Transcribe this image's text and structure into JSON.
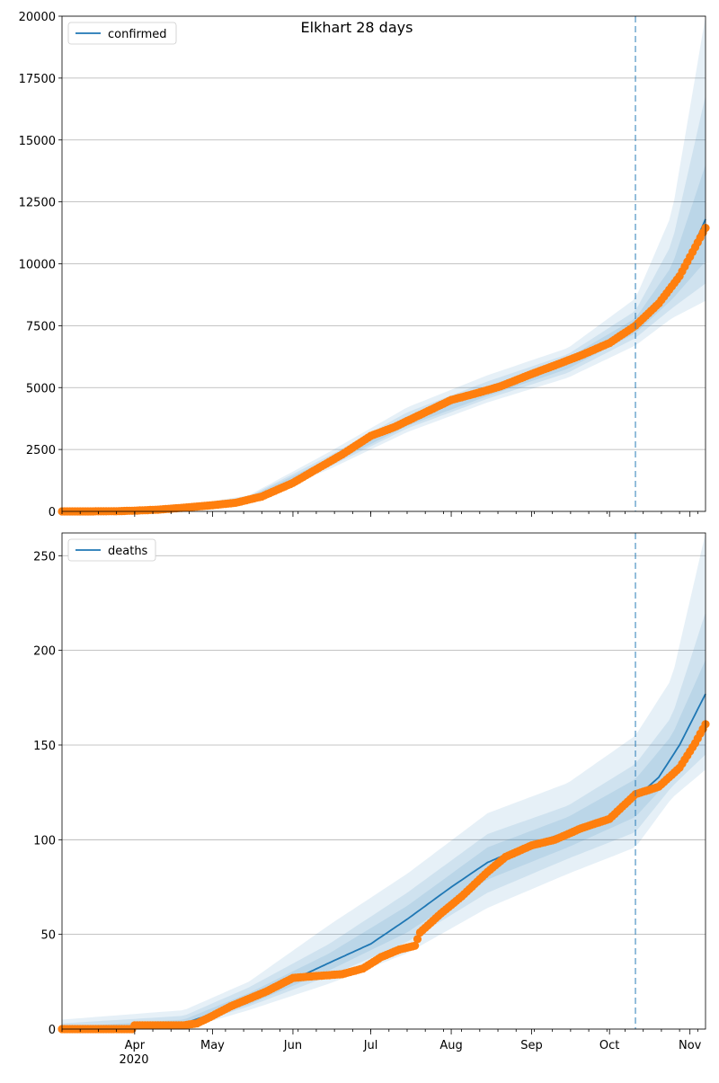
{
  "title": "Elkhart 28 days",
  "colors": {
    "model": "#1f77b4",
    "observed": "#ff7f0e",
    "band": "#1f77b4",
    "grid": "#b0b0b0"
  },
  "x_axis": {
    "months": [
      {
        "label": "Apr",
        "date": "2020-04-01"
      },
      {
        "label": "May",
        "date": "2020-05-01"
      },
      {
        "label": "Jun",
        "date": "2020-06-01"
      },
      {
        "label": "Jul",
        "date": "2020-07-01"
      },
      {
        "label": "Aug",
        "date": "2020-08-01"
      },
      {
        "label": "Sep",
        "date": "2020-09-01"
      },
      {
        "label": "Oct",
        "date": "2020-10-01"
      },
      {
        "label": "Nov",
        "date": "2020-11-01"
      }
    ],
    "year_label": "2020",
    "range": [
      "2020-03-04",
      "2020-11-07"
    ],
    "forecast_start": "2020-10-11"
  },
  "chart_data": [
    {
      "type": "line",
      "panel": "top",
      "legend": "confirmed",
      "legend_position": "upper-left",
      "grid": "y",
      "ylim": [
        0,
        20000
      ],
      "yticks": [
        "0",
        "2500",
        "5000",
        "7500",
        "10000",
        "12500",
        "15000",
        "17500",
        "20000"
      ],
      "model_series": {
        "name": "confirmed",
        "points": [
          [
            "2020-03-04",
            0
          ],
          [
            "2020-03-20",
            5
          ],
          [
            "2020-04-01",
            30
          ],
          [
            "2020-04-15",
            100
          ],
          [
            "2020-05-01",
            250
          ],
          [
            "2020-05-15",
            520
          ],
          [
            "2020-06-01",
            1200
          ],
          [
            "2020-06-15",
            2000
          ],
          [
            "2020-07-01",
            3050
          ],
          [
            "2020-07-15",
            3650
          ],
          [
            "2020-08-01",
            4400
          ],
          [
            "2020-08-15",
            4850
          ],
          [
            "2020-09-01",
            5550
          ],
          [
            "2020-09-15",
            6000
          ],
          [
            "2020-10-01",
            6700
          ],
          [
            "2020-10-11",
            7450
          ],
          [
            "2020-10-20",
            8300
          ],
          [
            "2020-10-28",
            9400
          ],
          [
            "2020-11-07",
            11800
          ]
        ]
      },
      "bands": [
        {
          "lower": [
            [
              "2020-03-04",
              0
            ],
            [
              "2020-04-15",
              70
            ],
            [
              "2020-05-15",
              400
            ],
            [
              "2020-06-15",
              1700
            ],
            [
              "2020-07-15",
              3200
            ],
            [
              "2020-08-15",
              4400
            ],
            [
              "2020-09-15",
              5400
            ],
            [
              "2020-10-11",
              6700
            ],
            [
              "2020-10-25",
              7800
            ],
            [
              "2020-11-07",
              8500
            ]
          ],
          "upper": [
            [
              "2020-03-04",
              0
            ],
            [
              "2020-04-15",
              140
            ],
            [
              "2020-05-15",
              650
            ],
            [
              "2020-06-15",
              2400
            ],
            [
              "2020-07-15",
              4200
            ],
            [
              "2020-08-15",
              5500
            ],
            [
              "2020-09-15",
              6600
            ],
            [
              "2020-10-11",
              8600
            ],
            [
              "2020-10-25",
              12000
            ],
            [
              "2020-11-07",
              20000
            ]
          ]
        },
        {
          "lower": [
            [
              "2020-03-04",
              0
            ],
            [
              "2020-04-15",
              80
            ],
            [
              "2020-05-15",
              440
            ],
            [
              "2020-06-15",
              1800
            ],
            [
              "2020-07-15",
              3350
            ],
            [
              "2020-08-15",
              4550
            ],
            [
              "2020-09-15",
              5600
            ],
            [
              "2020-10-11",
              7000
            ],
            [
              "2020-10-25",
              8200
            ],
            [
              "2020-11-07",
              9200
            ]
          ],
          "upper": [
            [
              "2020-03-04",
              0
            ],
            [
              "2020-04-15",
              125
            ],
            [
              "2020-05-15",
              610
            ],
            [
              "2020-06-15",
              2250
            ],
            [
              "2020-07-15",
              4000
            ],
            [
              "2020-08-15",
              5250
            ],
            [
              "2020-09-15",
              6350
            ],
            [
              "2020-10-11",
              8100
            ],
            [
              "2020-10-25",
              10800
            ],
            [
              "2020-11-07",
              16800
            ]
          ]
        },
        {
          "lower": [
            [
              "2020-03-04",
              0
            ],
            [
              "2020-04-15",
              88
            ],
            [
              "2020-05-15",
              470
            ],
            [
              "2020-06-15",
              1880
            ],
            [
              "2020-07-15",
              3450
            ],
            [
              "2020-08-15",
              4660
            ],
            [
              "2020-09-15",
              5760
            ],
            [
              "2020-10-11",
              7200
            ],
            [
              "2020-10-25",
              8550
            ],
            [
              "2020-11-07",
              10100
            ]
          ],
          "upper": [
            [
              "2020-03-04",
              0
            ],
            [
              "2020-04-15",
              115
            ],
            [
              "2020-05-15",
              575
            ],
            [
              "2020-06-15",
              2130
            ],
            [
              "2020-07-15",
              3850
            ],
            [
              "2020-08-15",
              5060
            ],
            [
              "2020-09-15",
              6200
            ],
            [
              "2020-10-11",
              7800
            ],
            [
              "2020-10-25",
              9900
            ],
            [
              "2020-11-07",
              14000
            ]
          ]
        }
      ],
      "observed": [
        [
          "2020-03-04",
          0
        ],
        [
          "2020-03-15",
          1
        ],
        [
          "2020-03-25",
          8
        ],
        [
          "2020-04-01",
          30
        ],
        [
          "2020-04-10",
          70
        ],
        [
          "2020-04-20",
          150
        ],
        [
          "2020-05-01",
          250
        ],
        [
          "2020-05-10",
          350
        ],
        [
          "2020-05-20",
          600
        ],
        [
          "2020-06-01",
          1150
        ],
        [
          "2020-06-10",
          1700
        ],
        [
          "2020-06-20",
          2300
        ],
        [
          "2020-07-01",
          3050
        ],
        [
          "2020-07-10",
          3400
        ],
        [
          "2020-07-20",
          3900
        ],
        [
          "2020-08-01",
          4500
        ],
        [
          "2020-08-10",
          4750
        ],
        [
          "2020-08-20",
          5050
        ],
        [
          "2020-09-01",
          5550
        ],
        [
          "2020-09-10",
          5900
        ],
        [
          "2020-09-20",
          6300
        ],
        [
          "2020-10-01",
          6800
        ],
        [
          "2020-10-11",
          7500
        ],
        [
          "2020-10-20",
          8400
        ],
        [
          "2020-10-28",
          9500
        ],
        [
          "2020-11-07",
          11450
        ]
      ]
    },
    {
      "type": "line",
      "panel": "bottom",
      "legend": "deaths",
      "legend_position": "upper-left",
      "grid": "y",
      "ylim": [
        0,
        262
      ],
      "yticks": [
        "0",
        "50",
        "100",
        "150",
        "200",
        "250"
      ],
      "model_series": {
        "name": "deaths",
        "points": [
          [
            "2020-03-04",
            0
          ],
          [
            "2020-04-01",
            1
          ],
          [
            "2020-04-20",
            3
          ],
          [
            "2020-05-01",
            8
          ],
          [
            "2020-05-15",
            16
          ],
          [
            "2020-06-01",
            26
          ],
          [
            "2020-06-15",
            35
          ],
          [
            "2020-07-01",
            45
          ],
          [
            "2020-07-15",
            58
          ],
          [
            "2020-08-01",
            75
          ],
          [
            "2020-08-15",
            88
          ],
          [
            "2020-09-01",
            98
          ],
          [
            "2020-09-15",
            104
          ],
          [
            "2020-10-01",
            112
          ],
          [
            "2020-10-11",
            122
          ],
          [
            "2020-10-20",
            133
          ],
          [
            "2020-10-28",
            150
          ],
          [
            "2020-11-07",
            177
          ]
        ]
      },
      "bands": [
        {
          "lower": [
            [
              "2020-03-04",
              0
            ],
            [
              "2020-04-20",
              0
            ],
            [
              "2020-05-15",
              10
            ],
            [
              "2020-06-15",
              24
            ],
            [
              "2020-07-15",
              40
            ],
            [
              "2020-08-15",
              64
            ],
            [
              "2020-09-15",
              82
            ],
            [
              "2020-10-11",
              96
            ],
            [
              "2020-10-25",
              122
            ],
            [
              "2020-11-07",
              137
            ]
          ],
          "upper": [
            [
              "2020-03-04",
              5
            ],
            [
              "2020-04-20",
              10
            ],
            [
              "2020-05-15",
              25
            ],
            [
              "2020-06-15",
              55
            ],
            [
              "2020-07-15",
              82
            ],
            [
              "2020-08-15",
              114
            ],
            [
              "2020-09-15",
              130
            ],
            [
              "2020-10-11",
              155
            ],
            [
              "2020-10-25",
              185
            ],
            [
              "2020-11-07",
              262
            ]
          ]
        },
        {
          "lower": [
            [
              "2020-03-04",
              0
            ],
            [
              "2020-04-20",
              1
            ],
            [
              "2020-05-15",
              12
            ],
            [
              "2020-06-15",
              28
            ],
            [
              "2020-07-15",
              46
            ],
            [
              "2020-08-15",
              72
            ],
            [
              "2020-09-15",
              90
            ],
            [
              "2020-10-11",
              104
            ],
            [
              "2020-10-25",
              128
            ],
            [
              "2020-11-07",
              145
            ]
          ],
          "upper": [
            [
              "2020-03-04",
              3
            ],
            [
              "2020-04-20",
              7
            ],
            [
              "2020-05-15",
              22
            ],
            [
              "2020-06-15",
              45
            ],
            [
              "2020-07-15",
              72
            ],
            [
              "2020-08-15",
              103
            ],
            [
              "2020-09-15",
              118
            ],
            [
              "2020-10-11",
              140
            ],
            [
              "2020-10-25",
              165
            ],
            [
              "2020-11-07",
              220
            ]
          ]
        },
        {
          "lower": [
            [
              "2020-03-04",
              0
            ],
            [
              "2020-04-20",
              2
            ],
            [
              "2020-05-15",
              13
            ],
            [
              "2020-06-15",
              31
            ],
            [
              "2020-07-15",
              51
            ],
            [
              "2020-08-15",
              79
            ],
            [
              "2020-09-15",
              96
            ],
            [
              "2020-10-11",
              112
            ],
            [
              "2020-10-25",
              133
            ],
            [
              "2020-11-07",
              158
            ]
          ],
          "upper": [
            [
              "2020-03-04",
              1
            ],
            [
              "2020-04-20",
              5
            ],
            [
              "2020-05-15",
              19
            ],
            [
              "2020-06-15",
              40
            ],
            [
              "2020-07-15",
              65
            ],
            [
              "2020-08-15",
              96
            ],
            [
              "2020-09-15",
              112
            ],
            [
              "2020-10-11",
              132
            ],
            [
              "2020-10-25",
              155
            ],
            [
              "2020-11-07",
              195
            ]
          ]
        }
      ],
      "observed": [
        [
          "2020-03-04",
          0
        ],
        [
          "2020-03-31",
          0
        ],
        [
          "2020-04-01",
          2
        ],
        [
          "2020-04-10",
          2
        ],
        [
          "2020-04-20",
          2
        ],
        [
          "2020-04-25",
          3
        ],
        [
          "2020-05-01",
          7
        ],
        [
          "2020-05-08",
          12
        ],
        [
          "2020-05-15",
          16
        ],
        [
          "2020-05-22",
          20
        ],
        [
          "2020-06-01",
          27
        ],
        [
          "2020-06-10",
          28
        ],
        [
          "2020-06-20",
          29
        ],
        [
          "2020-06-28",
          32
        ],
        [
          "2020-07-05",
          38
        ],
        [
          "2020-07-12",
          42
        ],
        [
          "2020-07-18",
          44
        ],
        [
          "2020-07-20",
          51
        ],
        [
          "2020-07-28",
          61
        ],
        [
          "2020-08-05",
          70
        ],
        [
          "2020-08-15",
          83
        ],
        [
          "2020-08-22",
          91
        ],
        [
          "2020-09-01",
          97
        ],
        [
          "2020-09-10",
          100
        ],
        [
          "2020-09-20",
          106
        ],
        [
          "2020-10-01",
          111
        ],
        [
          "2020-10-11",
          124
        ],
        [
          "2020-10-20",
          128
        ],
        [
          "2020-10-28",
          138
        ],
        [
          "2020-11-03",
          151
        ],
        [
          "2020-11-07",
          161
        ]
      ]
    }
  ]
}
